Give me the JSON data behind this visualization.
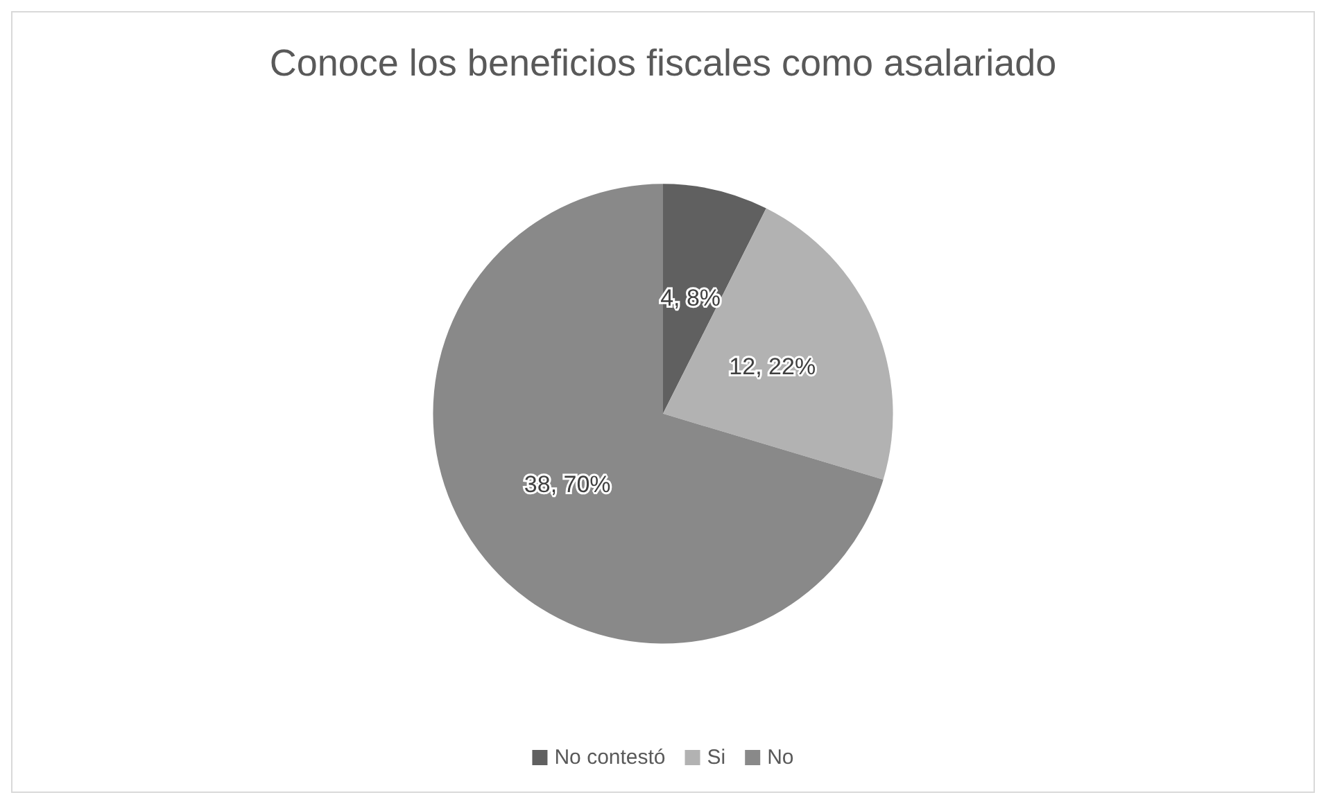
{
  "chart_data": {
    "type": "pie",
    "title": "Conoce los beneficios fiscales como asalariado",
    "categories": [
      "No contestó",
      "Si",
      "No"
    ],
    "values": [
      4,
      12,
      38
    ],
    "colors": [
      "#606060",
      "#b2b2b2",
      "#898989"
    ],
    "value_labels": [
      "4, 8%",
      "12, 22%",
      "38, 70%"
    ],
    "legend": "bottom"
  }
}
